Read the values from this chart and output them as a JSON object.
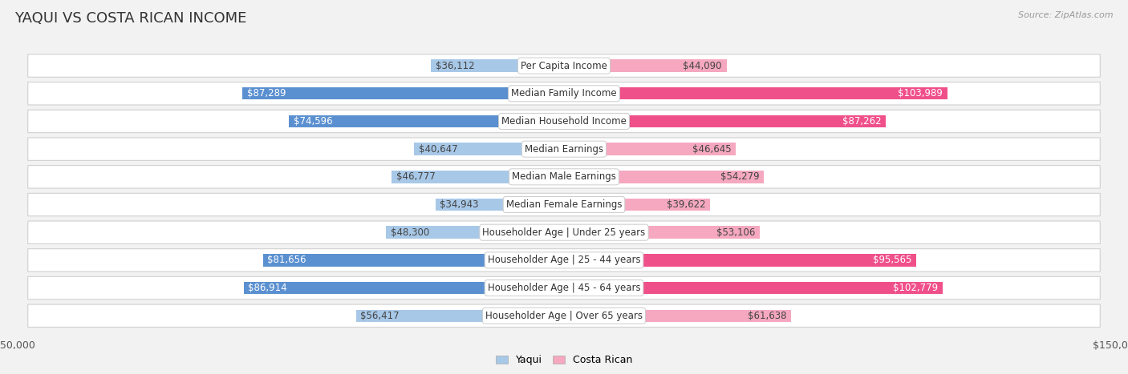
{
  "title": "YAQUI VS COSTA RICAN INCOME",
  "source": "Source: ZipAtlas.com",
  "categories": [
    "Per Capita Income",
    "Median Family Income",
    "Median Household Income",
    "Median Earnings",
    "Median Male Earnings",
    "Median Female Earnings",
    "Householder Age | Under 25 years",
    "Householder Age | 25 - 44 years",
    "Householder Age | 45 - 64 years",
    "Householder Age | Over 65 years"
  ],
  "yaqui_values": [
    36112,
    87289,
    74596,
    40647,
    46777,
    34943,
    48300,
    81656,
    86914,
    56417
  ],
  "costarican_values": [
    44090,
    103989,
    87262,
    46645,
    54279,
    39622,
    53106,
    95565,
    102779,
    61638
  ],
  "yaqui_labels": [
    "$36,112",
    "$87,289",
    "$74,596",
    "$40,647",
    "$46,777",
    "$34,943",
    "$48,300",
    "$81,656",
    "$86,914",
    "$56,417"
  ],
  "costarican_labels": [
    "$44,090",
    "$103,989",
    "$87,262",
    "$46,645",
    "$54,279",
    "$39,622",
    "$53,106",
    "$95,565",
    "$102,779",
    "$61,638"
  ],
  "yaqui_color_light": "#a8c8e8",
  "yaqui_color_dark": "#5b90d0",
  "costarican_color_light": "#f5a8c0",
  "costarican_color_dark": "#f0508a",
  "yaqui_dark_indices": [
    1,
    2,
    7,
    8
  ],
  "costarican_dark_indices": [
    1,
    2,
    7,
    8
  ],
  "axis_max": 150000,
  "background_color": "#f2f2f2",
  "row_bg_color": "#ffffff",
  "title_fontsize": 13,
  "label_fontsize": 8.5,
  "category_fontsize": 8.5
}
